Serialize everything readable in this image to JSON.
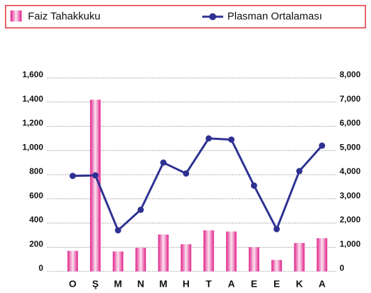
{
  "chart_data": {
    "type": "bar_line",
    "categories": [
      "O",
      "Ş",
      "M",
      "N",
      "M",
      "H",
      "T",
      "A",
      "E",
      "E",
      "K",
      "A"
    ],
    "series": [
      {
        "name": "Faiz Tahakkuku",
        "type": "bar",
        "color": "#e0208a",
        "values": [
          170,
          1420,
          165,
          195,
          305,
          225,
          340,
          330,
          200,
          95,
          235,
          275
        ]
      },
      {
        "name": "Plasman Ortalaması",
        "type": "line",
        "axis": "y2",
        "color": "#2e3192",
        "values": [
          3950,
          3970,
          1700,
          2550,
          4500,
          4050,
          5500,
          5450,
          3550,
          1750,
          4150,
          5200
        ]
      }
    ],
    "ylim": [
      0,
      1600
    ],
    "yticks": [
      0,
      200,
      400,
      600,
      800,
      {
        "value": 1000,
        "label": "1,000"
      },
      {
        "value": 1200,
        "label": "1,200"
      },
      {
        "value": 1400,
        "label": "1,400"
      },
      {
        "value": 1600,
        "label": "1,600"
      }
    ],
    "y2lim": [
      0,
      8000
    ],
    "y2ticks": [
      0,
      {
        "value": 1000,
        "label": "1,000"
      },
      {
        "value": 2000,
        "label": "2,000"
      },
      {
        "value": 3000,
        "label": "3,000"
      },
      {
        "value": 4000,
        "label": "4,000"
      },
      {
        "value": 5000,
        "label": "5,000"
      },
      {
        "value": 6000,
        "label": "6,000"
      },
      {
        "value": 7000,
        "label": "7,000"
      },
      {
        "value": 8000,
        "label": "8,000"
      }
    ],
    "grid": true
  }
}
